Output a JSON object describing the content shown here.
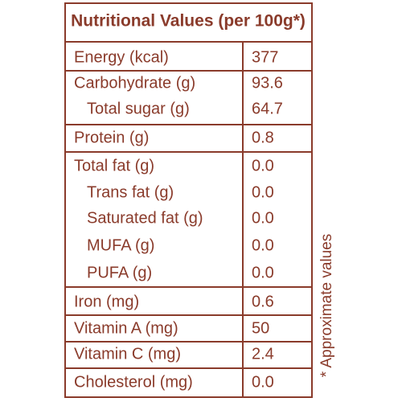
{
  "title": "Nutritional Values (per 100g*)",
  "rows": [
    [
      "Energy (kcal)",
      "377"
    ],
    [
      "Carbohydrate (g)",
      "93.6"
    ],
    [
      "Total sugar (g)",
      "64.7"
    ],
    [
      "Protein (g)",
      "0.8"
    ],
    [
      "Total fat (g)",
      "0.0"
    ],
    [
      "Trans fat (g)",
      "0.0"
    ],
    [
      "Saturated fat (g)",
      "0.0"
    ],
    [
      "MUFA (g)",
      "0.0"
    ],
    [
      "PUFA (g)",
      "0.0"
    ],
    [
      "Iron (mg)",
      "0.6"
    ],
    [
      "Vitamin A (mg)",
      "50"
    ],
    [
      "Vitamin C (mg)",
      "2.4"
    ],
    [
      "Cholesterol (mg)",
      "0.0"
    ]
  ],
  "footnote": "* Approximate values"
}
